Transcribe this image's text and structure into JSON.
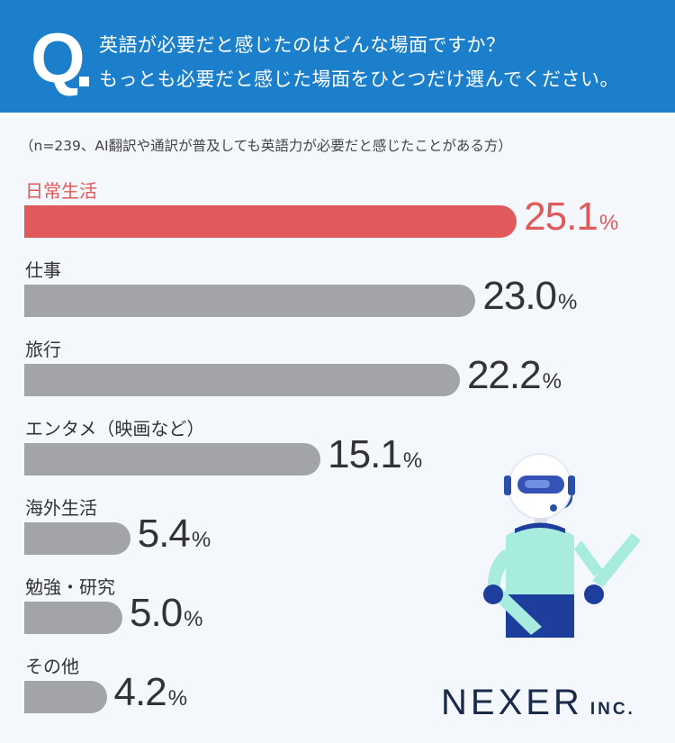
{
  "header": {
    "q_mark": "Q",
    "question_line1": "英語が必要だと感じたのはどんな場面ですか？",
    "question_line2": "もっとも必要だと感じた場面をひとつだけ選んでください。"
  },
  "note": "（n=239、AI翻訳や通訳が普及しても英語力が必要だと感じたことがある方）",
  "colors": {
    "header": "#1b7fcb",
    "highlight": "#e05a5b",
    "bar": "#a3a4a8",
    "background": "#f4f7fc"
  },
  "chart_data": {
    "type": "bar",
    "orientation": "horizontal",
    "categories": [
      "日常生活",
      "仕事",
      "旅行",
      "エンタメ（映画など）",
      "海外生活",
      "勉強・研究",
      "その他"
    ],
    "values": [
      25.1,
      23.0,
      22.2,
      15.1,
      5.4,
      5.0,
      4.2
    ],
    "value_labels": [
      "25.1",
      "23.0",
      "22.2",
      "15.1",
      "5.4",
      "5.0",
      "4.2"
    ],
    "unit": "%",
    "highlight_index": 0,
    "grid": false
  },
  "logo": {
    "main": "NEXER",
    "sub": "INC."
  }
}
